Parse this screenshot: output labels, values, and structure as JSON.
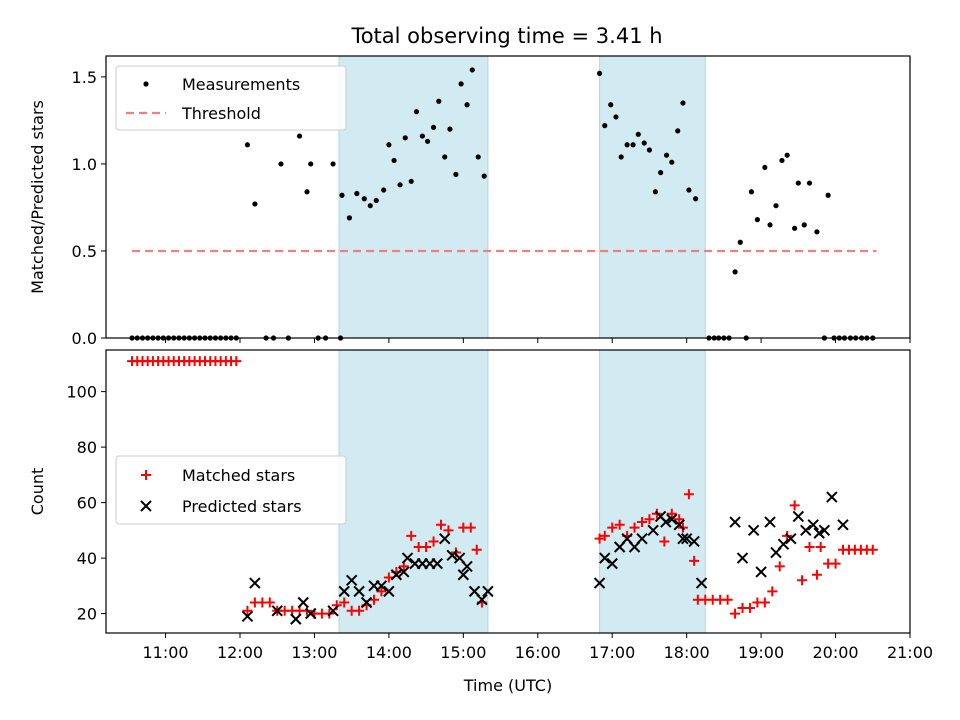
{
  "title": "Total observing time = 3.41 h",
  "colors": {
    "shade": "#add8e6",
    "threshold": "#f08080",
    "matched": "#ff0000",
    "predicted": "#000000",
    "measurement": "#000000"
  },
  "chart_data": [
    {
      "type": "scatter",
      "ylabel": "Matched/Predicted stars",
      "xlim": [
        10.2,
        21.0
      ],
      "ylim": [
        0,
        1.62
      ],
      "yticks": [
        0.0,
        0.5,
        1.0,
        1.5
      ],
      "ytick_labels": [
        "0.0",
        "0.5",
        "1.0",
        "1.5"
      ],
      "legend": {
        "placement": "top-left",
        "measurements_label": "Measurements",
        "threshold_label": "Threshold"
      },
      "threshold": {
        "value": 0.5,
        "x_range": [
          10.55,
          20.55
        ]
      },
      "shaded_intervals": [
        [
          13.33,
          15.33
        ],
        [
          16.83,
          18.25
        ]
      ],
      "measurements": [
        [
          10.55,
          0
        ],
        [
          10.62,
          0
        ],
        [
          10.69,
          0
        ],
        [
          10.76,
          0
        ],
        [
          10.83,
          0
        ],
        [
          10.9,
          0
        ],
        [
          10.97,
          0
        ],
        [
          11.04,
          0
        ],
        [
          11.11,
          0
        ],
        [
          11.18,
          0
        ],
        [
          11.25,
          0
        ],
        [
          11.32,
          0
        ],
        [
          11.39,
          0
        ],
        [
          11.46,
          0
        ],
        [
          11.53,
          0
        ],
        [
          11.6,
          0
        ],
        [
          11.67,
          0
        ],
        [
          11.74,
          0
        ],
        [
          11.81,
          0
        ],
        [
          11.88,
          0
        ],
        [
          11.95,
          0
        ],
        [
          12.1,
          1.11
        ],
        [
          12.2,
          0.77
        ],
        [
          12.35,
          0
        ],
        [
          12.45,
          0
        ],
        [
          12.55,
          1.0
        ],
        [
          12.65,
          0
        ],
        [
          12.8,
          1.16
        ],
        [
          12.9,
          0.84
        ],
        [
          12.95,
          1.0
        ],
        [
          13.05,
          0
        ],
        [
          13.15,
          0
        ],
        [
          13.25,
          1.0
        ],
        [
          13.35,
          0
        ],
        [
          13.37,
          0.82
        ],
        [
          13.47,
          0.69
        ],
        [
          13.57,
          0.83
        ],
        [
          13.67,
          0.8
        ],
        [
          13.75,
          0.76
        ],
        [
          13.83,
          0.79
        ],
        [
          13.93,
          0.85
        ],
        [
          14.0,
          1.11
        ],
        [
          14.07,
          1.02
        ],
        [
          14.15,
          0.88
        ],
        [
          14.22,
          1.15
        ],
        [
          14.3,
          0.9
        ],
        [
          14.37,
          1.3
        ],
        [
          14.45,
          1.16
        ],
        [
          14.52,
          1.13
        ],
        [
          14.6,
          1.21
        ],
        [
          14.67,
          1.36
        ],
        [
          14.75,
          1.04
        ],
        [
          14.82,
          1.2
        ],
        [
          14.9,
          0.94
        ],
        [
          14.97,
          1.46
        ],
        [
          15.05,
          1.34
        ],
        [
          15.12,
          1.54
        ],
        [
          15.2,
          1.04
        ],
        [
          15.28,
          0.93
        ],
        [
          16.83,
          1.52
        ],
        [
          16.9,
          1.22
        ],
        [
          16.98,
          1.34
        ],
        [
          17.05,
          1.27
        ],
        [
          17.12,
          1.04
        ],
        [
          17.2,
          1.11
        ],
        [
          17.28,
          1.11
        ],
        [
          17.35,
          1.17
        ],
        [
          17.43,
          1.12
        ],
        [
          17.5,
          1.08
        ],
        [
          17.58,
          0.84
        ],
        [
          17.65,
          0.95
        ],
        [
          17.73,
          1.05
        ],
        [
          17.8,
          1.01
        ],
        [
          17.88,
          1.19
        ],
        [
          17.95,
          1.35
        ],
        [
          18.03,
          0.85
        ],
        [
          18.12,
          0.8
        ],
        [
          18.3,
          0
        ],
        [
          18.37,
          0
        ],
        [
          18.43,
          0
        ],
        [
          18.5,
          0
        ],
        [
          18.57,
          0
        ],
        [
          18.65,
          0.38
        ],
        [
          18.72,
          0.55
        ],
        [
          18.8,
          0
        ],
        [
          18.87,
          0.84
        ],
        [
          18.95,
          0.68
        ],
        [
          19.05,
          0.98
        ],
        [
          19.12,
          0.65
        ],
        [
          19.2,
          0.76
        ],
        [
          19.28,
          1.02
        ],
        [
          19.35,
          1.05
        ],
        [
          19.45,
          0.63
        ],
        [
          19.5,
          0.89
        ],
        [
          19.58,
          0.65
        ],
        [
          19.65,
          0.89
        ],
        [
          19.75,
          0.61
        ],
        [
          19.85,
          0
        ],
        [
          19.9,
          0.82
        ],
        [
          19.98,
          0
        ],
        [
          20.05,
          0
        ],
        [
          20.12,
          0
        ],
        [
          20.2,
          0
        ],
        [
          20.27,
          0
        ],
        [
          20.35,
          0
        ],
        [
          20.42,
          0
        ],
        [
          20.5,
          0
        ]
      ]
    },
    {
      "type": "scatter",
      "xlabel": "Time (UTC)",
      "ylabel": "Count",
      "xlim": [
        10.2,
        21.0
      ],
      "ylim": [
        13,
        115
      ],
      "yticks": [
        20,
        40,
        60,
        80,
        100
      ],
      "ytick_labels": [
        "20",
        "40",
        "60",
        "80",
        "100"
      ],
      "xticks": [
        11,
        12,
        13,
        14,
        15,
        16,
        17,
        18,
        19,
        20,
        21
      ],
      "xtick_labels": [
        "11:00",
        "12:00",
        "13:00",
        "14:00",
        "15:00",
        "16:00",
        "17:00",
        "18:00",
        "19:00",
        "20:00",
        "21:00"
      ],
      "legend": {
        "placement": "center-left",
        "matched_label": "Matched stars",
        "predicted_label": "Predicted stars"
      },
      "shaded_intervals": [
        [
          13.33,
          15.33
        ],
        [
          16.83,
          18.25
        ]
      ],
      "series": [
        {
          "name": "Matched stars",
          "marker": "plus",
          "points": [
            [
              10.55,
              111
            ],
            [
              10.62,
              111
            ],
            [
              10.69,
              111
            ],
            [
              10.76,
              111
            ],
            [
              10.83,
              111
            ],
            [
              10.9,
              111
            ],
            [
              10.97,
              111
            ],
            [
              11.04,
              111
            ],
            [
              11.11,
              111
            ],
            [
              11.18,
              111
            ],
            [
              11.25,
              111
            ],
            [
              11.32,
              111
            ],
            [
              11.39,
              111
            ],
            [
              11.46,
              111
            ],
            [
              11.53,
              111
            ],
            [
              11.6,
              111
            ],
            [
              11.67,
              111
            ],
            [
              11.74,
              111
            ],
            [
              11.81,
              111
            ],
            [
              11.88,
              111
            ],
            [
              11.95,
              111
            ],
            [
              12.1,
              21
            ],
            [
              12.2,
              24
            ],
            [
              12.3,
              24
            ],
            [
              12.4,
              24
            ],
            [
              12.5,
              21
            ],
            [
              12.6,
              21
            ],
            [
              12.7,
              21
            ],
            [
              12.8,
              21
            ],
            [
              12.9,
              21
            ],
            [
              13.0,
              20
            ],
            [
              13.1,
              20
            ],
            [
              13.2,
              20
            ],
            [
              13.3,
              23
            ],
            [
              13.4,
              24
            ],
            [
              13.5,
              21
            ],
            [
              13.6,
              21
            ],
            [
              13.7,
              23
            ],
            [
              13.8,
              25
            ],
            [
              13.9,
              28
            ],
            [
              14.0,
              33
            ],
            [
              14.1,
              35
            ],
            [
              14.2,
              37
            ],
            [
              14.3,
              48
            ],
            [
              14.4,
              44
            ],
            [
              14.5,
              44
            ],
            [
              14.6,
              46
            ],
            [
              14.7,
              52
            ],
            [
              14.8,
              50
            ],
            [
              14.9,
              42
            ],
            [
              15.0,
              51
            ],
            [
              15.1,
              51
            ],
            [
              15.18,
              43
            ],
            [
              15.25,
              24
            ],
            [
              16.83,
              47
            ],
            [
              16.9,
              48
            ],
            [
              17.0,
              51
            ],
            [
              17.1,
              52
            ],
            [
              17.2,
              48
            ],
            [
              17.3,
              51
            ],
            [
              17.4,
              53
            ],
            [
              17.5,
              54
            ],
            [
              17.6,
              56
            ],
            [
              17.7,
              46
            ],
            [
              17.8,
              56
            ],
            [
              17.9,
              54
            ],
            [
              17.95,
              51
            ],
            [
              18.03,
              63
            ],
            [
              18.1,
              39
            ],
            [
              18.15,
              25
            ],
            [
              18.25,
              25
            ],
            [
              18.35,
              25
            ],
            [
              18.45,
              25
            ],
            [
              18.55,
              25
            ],
            [
              18.65,
              20
            ],
            [
              18.75,
              22
            ],
            [
              18.85,
              22
            ],
            [
              18.95,
              24
            ],
            [
              19.05,
              24
            ],
            [
              19.15,
              28
            ],
            [
              19.25,
              37
            ],
            [
              19.35,
              48
            ],
            [
              19.45,
              59
            ],
            [
              19.55,
              32
            ],
            [
              19.65,
              44
            ],
            [
              19.75,
              34
            ],
            [
              19.8,
              44
            ],
            [
              19.9,
              38
            ],
            [
              20.0,
              38
            ],
            [
              20.1,
              43
            ],
            [
              20.18,
              43
            ],
            [
              20.26,
              43
            ],
            [
              20.34,
              43
            ],
            [
              20.42,
              43
            ],
            [
              20.5,
              43
            ]
          ]
        },
        {
          "name": "Predicted stars",
          "marker": "x",
          "points": [
            [
              12.1,
              19
            ],
            [
              12.2,
              31
            ],
            [
              12.5,
              21
            ],
            [
              12.75,
              18
            ],
            [
              12.85,
              24
            ],
            [
              12.95,
              20
            ],
            [
              13.25,
              21
            ],
            [
              13.4,
              28
            ],
            [
              13.5,
              32
            ],
            [
              13.6,
              28
            ],
            [
              13.7,
              24
            ],
            [
              13.8,
              30
            ],
            [
              13.9,
              30
            ],
            [
              14.0,
              28
            ],
            [
              14.1,
              34
            ],
            [
              14.2,
              35
            ],
            [
              14.25,
              40
            ],
            [
              14.35,
              38
            ],
            [
              14.45,
              38
            ],
            [
              14.55,
              38
            ],
            [
              14.65,
              38
            ],
            [
              14.75,
              47
            ],
            [
              14.85,
              41
            ],
            [
              14.95,
              40
            ],
            [
              15.0,
              34
            ],
            [
              15.05,
              37
            ],
            [
              15.15,
              28
            ],
            [
              15.25,
              25
            ],
            [
              15.33,
              28
            ],
            [
              16.83,
              31
            ],
            [
              16.9,
              40
            ],
            [
              17.0,
              38
            ],
            [
              17.1,
              44
            ],
            [
              17.2,
              47
            ],
            [
              17.3,
              44
            ],
            [
              17.4,
              47
            ],
            [
              17.55,
              50
            ],
            [
              17.65,
              55
            ],
            [
              17.72,
              53
            ],
            [
              17.8,
              54
            ],
            [
              17.9,
              52
            ],
            [
              17.95,
              47
            ],
            [
              18.0,
              47
            ],
            [
              18.1,
              46
            ],
            [
              18.2,
              31
            ],
            [
              18.65,
              53
            ],
            [
              18.75,
              40
            ],
            [
              18.9,
              50
            ],
            [
              19.0,
              35
            ],
            [
              19.12,
              53
            ],
            [
              19.2,
              42
            ],
            [
              19.3,
              45
            ],
            [
              19.4,
              47
            ],
            [
              19.5,
              55
            ],
            [
              19.6,
              50
            ],
            [
              19.7,
              52
            ],
            [
              19.78,
              49
            ],
            [
              19.85,
              50
            ],
            [
              19.95,
              62
            ],
            [
              20.1,
              52
            ]
          ]
        }
      ]
    }
  ]
}
